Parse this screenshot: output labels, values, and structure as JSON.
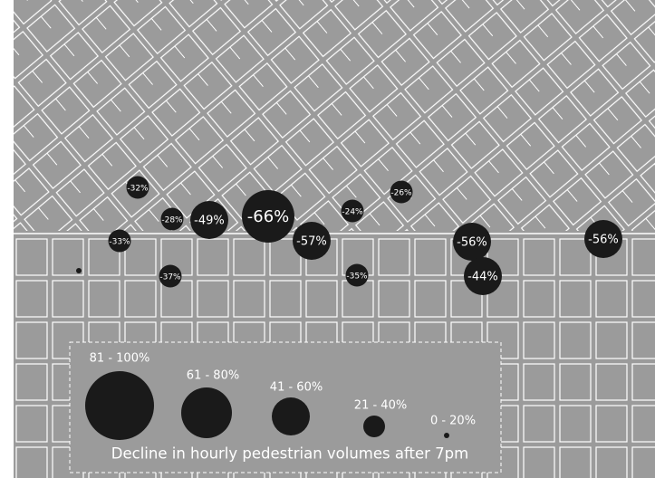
{
  "markers": [
    {
      "label": "-32%",
      "value": -32
    },
    {
      "label": "-28%",
      "value": -28
    },
    {
      "label": "-49%",
      "value": -49
    },
    {
      "label": "-66%",
      "value": -66
    },
    {
      "label": "-24%",
      "value": -24
    },
    {
      "label": "-26%",
      "value": -26
    },
    {
      "label": "-33%",
      "value": -33
    },
    {
      "label": "-57%",
      "value": -57
    },
    {
      "label": "-37%",
      "value": -37
    },
    {
      "label": "-35%",
      "value": -35
    },
    {
      "label": "-56%",
      "value": -56
    },
    {
      "label": "-44%",
      "value": -44
    },
    {
      "label": "-56%",
      "value": -56
    }
  ],
  "legend": {
    "items": [
      "81 - 100%",
      "61 - 80%",
      "41 - 60%",
      "21 - 40%",
      "0 - 20%"
    ],
    "caption": "Decline in hourly pedestrian volumes after 7pm"
  }
}
